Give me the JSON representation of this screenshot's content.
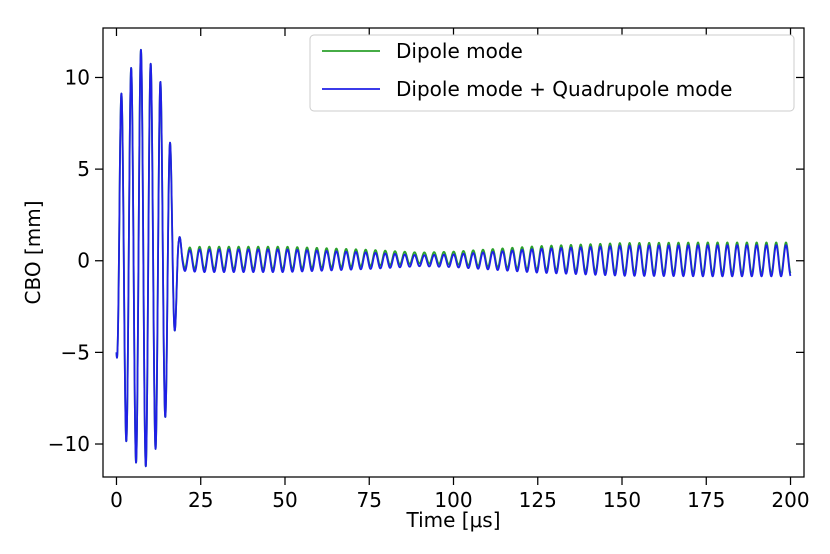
{
  "chart_data": {
    "type": "line",
    "title": "",
    "xlabel": "Time [μs]",
    "ylabel": "CBO [mm]",
    "xlim": [
      -4,
      204
    ],
    "ylim": [
      -11.8,
      12.7
    ],
    "xticks": [
      0,
      25,
      50,
      75,
      100,
      125,
      150,
      175,
      200
    ],
    "xtick_labels": [
      "0",
      "25",
      "50",
      "75",
      "100",
      "125",
      "150",
      "175",
      "200"
    ],
    "yticks": [
      -10,
      -5,
      0,
      5,
      10
    ],
    "ytick_labels": [
      "−10",
      "−5",
      "0",
      "5",
      "10"
    ],
    "grid": false,
    "legend_position": "upper-right",
    "model": {
      "t_end": 200,
      "sample_step": 0.05,
      "oscillation_period": 2.9,
      "early_phase": {
        "t_end": 19.5,
        "envelope_points": [
          [
            0,
            5
          ],
          [
            1,
            8.9
          ],
          [
            4,
            10.4
          ],
          [
            7.5,
            11.6
          ],
          [
            10,
            10.8
          ],
          [
            13,
            9.8
          ],
          [
            15,
            8.1
          ],
          [
            17,
            4.5
          ],
          [
            18.5,
            1.5
          ],
          [
            19.5,
            0.8
          ]
        ]
      },
      "late_phase": {
        "t_start": 19.5,
        "amplitude_points": [
          [
            19.5,
            0.55
          ],
          [
            25,
            0.62
          ],
          [
            50,
            0.62
          ],
          [
            75,
            0.45
          ],
          [
            90,
            0.3
          ],
          [
            100,
            0.35
          ],
          [
            125,
            0.65
          ],
          [
            150,
            0.82
          ],
          [
            175,
            0.85
          ],
          [
            200,
            0.85
          ]
        ]
      }
    },
    "series": [
      {
        "name": "Dipole mode",
        "color": "#2ca02c",
        "late_phase_offset": 0.15
      },
      {
        "name": "Dipole mode + Quadrupole mode",
        "color": "#1f1fe6",
        "late_phase_offset": 0.0
      }
    ]
  }
}
